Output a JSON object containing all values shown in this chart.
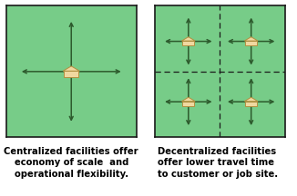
{
  "bg_color": "#ffffff",
  "panel_color": "#77cc88",
  "panel_edge_color": "#1a1a1a",
  "arrow_color": "#2d5a2d",
  "house_fill": "#f0d8a0",
  "house_edge": "#b09040",
  "dashed_color": "#1a1a1a",
  "left_caption_lines": [
    "Centralized facilities offer",
    "economy of scale  and",
    "operational flexibility."
  ],
  "right_caption_lines": [
    "Decentralized facilities",
    "offer lower travel time",
    "to customer or job site."
  ],
  "caption_fontsize": 7.2,
  "caption_fontweight": "bold",
  "left_caption_align": "center",
  "right_caption_align": "left"
}
